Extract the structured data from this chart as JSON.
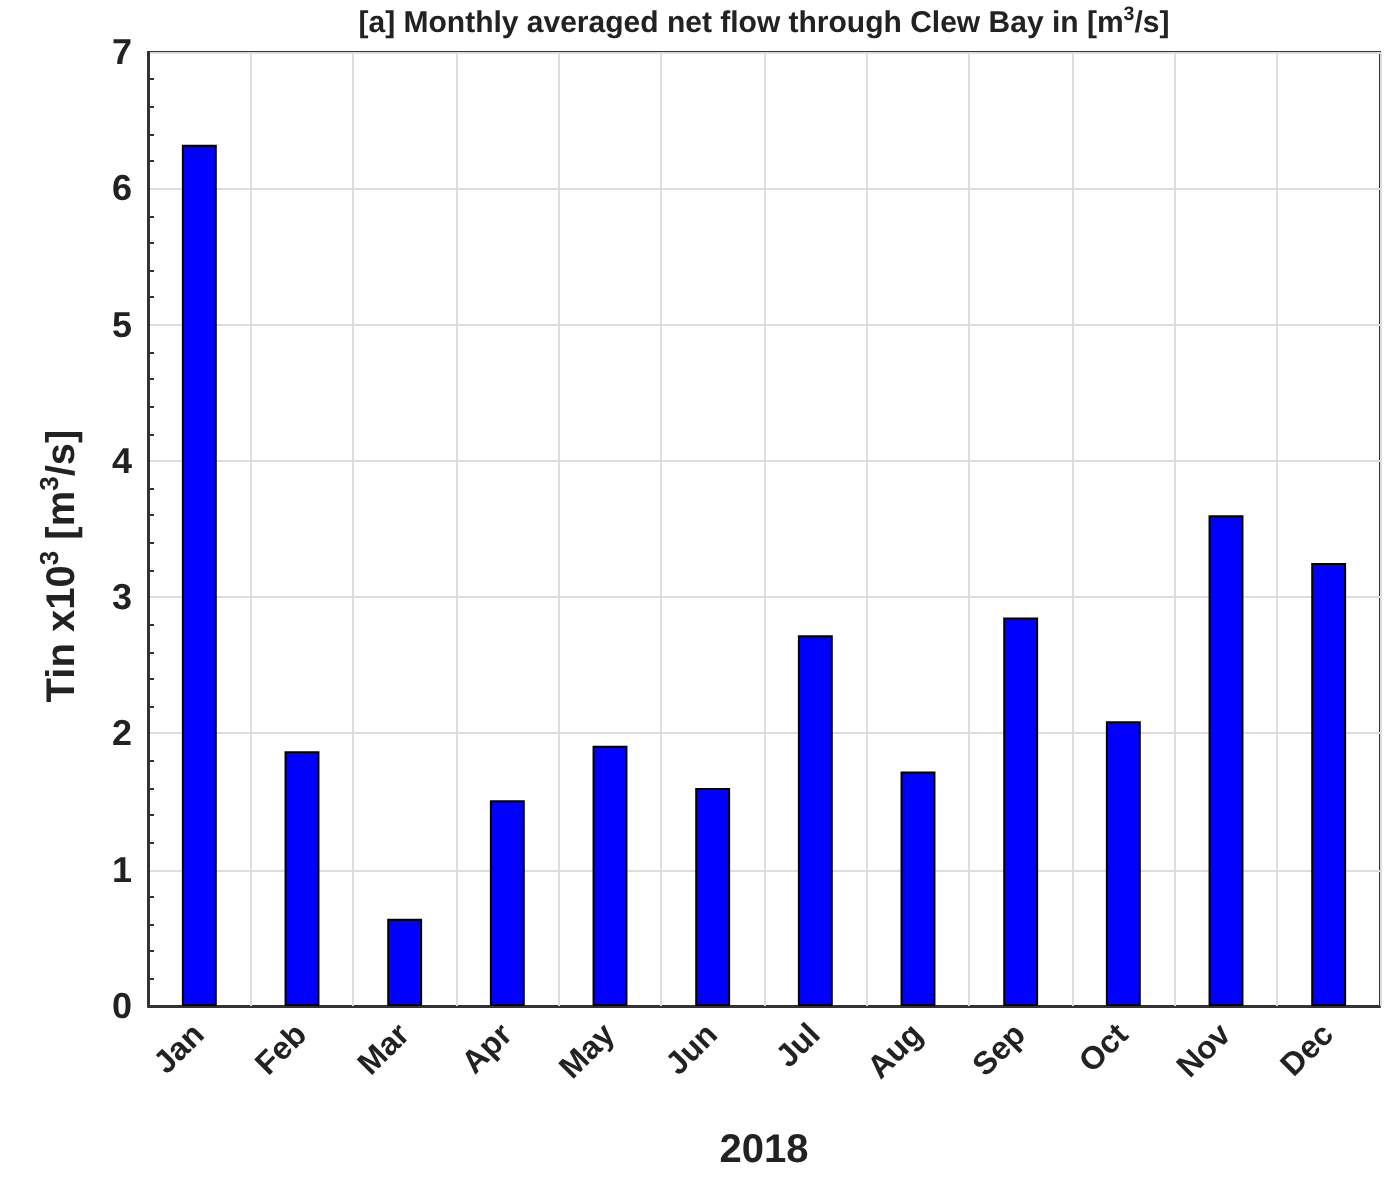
{
  "chart_data": {
    "type": "bar",
    "title": "[a] Monthly averaged net flow through Clew Bay in [m$^{3}$/s]",
    "xlabel": "2018",
    "ylabel": "Tin x10$^{3}$ [m$^{3}$/s]",
    "categories": [
      "Jan",
      "Feb",
      "Mar",
      "Apr",
      "May",
      "Jun",
      "Jul",
      "Aug",
      "Sep",
      "Oct",
      "Nov",
      "Dec"
    ],
    "values": [
      6.32,
      1.87,
      0.64,
      1.51,
      1.91,
      1.6,
      2.72,
      1.72,
      2.85,
      2.09,
      3.6,
      3.25
    ],
    "color": "#0000ff",
    "ylim": [
      0,
      7
    ],
    "yticks": [
      0,
      1,
      2,
      3,
      4,
      5,
      6,
      7
    ],
    "grid": true
  }
}
